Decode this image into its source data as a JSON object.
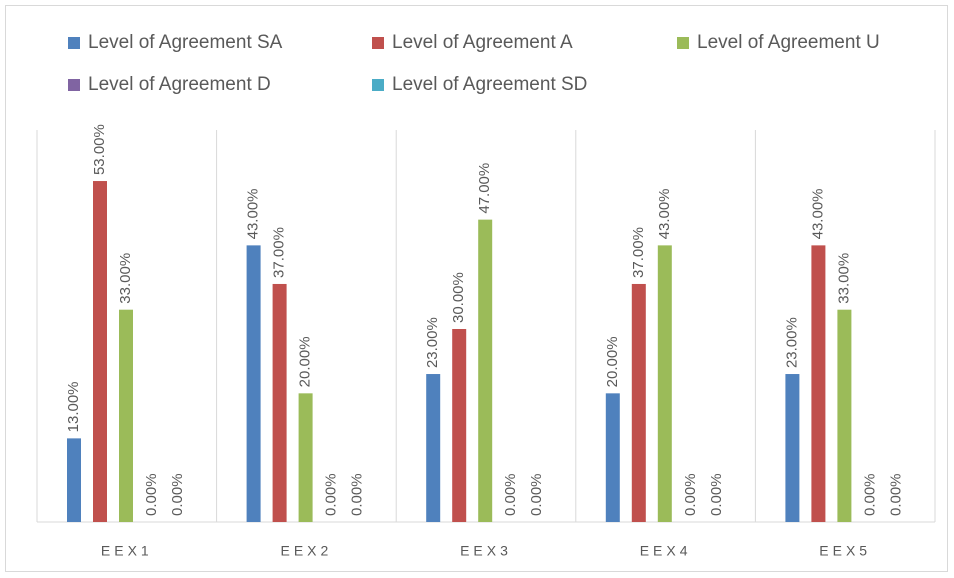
{
  "chart_data": {
    "type": "bar",
    "categories": [
      "EEX1",
      "EEX2",
      "EEX3",
      "EEX4",
      "EEX5"
    ],
    "ylim": [
      0,
      60
    ],
    "series": [
      {
        "name": "Level of Agreement SA",
        "color": "#4F81BD",
        "values": [
          13,
          43,
          23,
          20,
          23
        ],
        "value_labels": [
          "13.00%",
          "43.00%",
          "23.00%",
          "20.00%",
          "23.00%"
        ]
      },
      {
        "name": "Level of Agreement A",
        "color": "#C0504D",
        "values": [
          53,
          37,
          30,
          37,
          43
        ],
        "value_labels": [
          "53.00%",
          "37.00%",
          "30.00%",
          "37.00%",
          "43.00%"
        ]
      },
      {
        "name": "Level of Agreement U",
        "color": "#9BBB59",
        "values": [
          33,
          20,
          47,
          43,
          33
        ],
        "value_labels": [
          "33.00%",
          "20.00%",
          "47.00%",
          "43.00%",
          "33.00%"
        ]
      },
      {
        "name": "Level of Agreement D",
        "color": "#8064A2",
        "values": [
          0,
          0,
          0,
          0,
          0
        ],
        "value_labels": [
          "0.00%",
          "0.00%",
          "0.00%",
          "0.00%",
          "0.00%"
        ]
      },
      {
        "name": "Level of Agreement SD",
        "color": "#4BACC6",
        "values": [
          0,
          0,
          0,
          0,
          0
        ],
        "value_labels": [
          "0.00%",
          "0.00%",
          "0.00%",
          "0.00%",
          "0.00%"
        ]
      }
    ]
  }
}
